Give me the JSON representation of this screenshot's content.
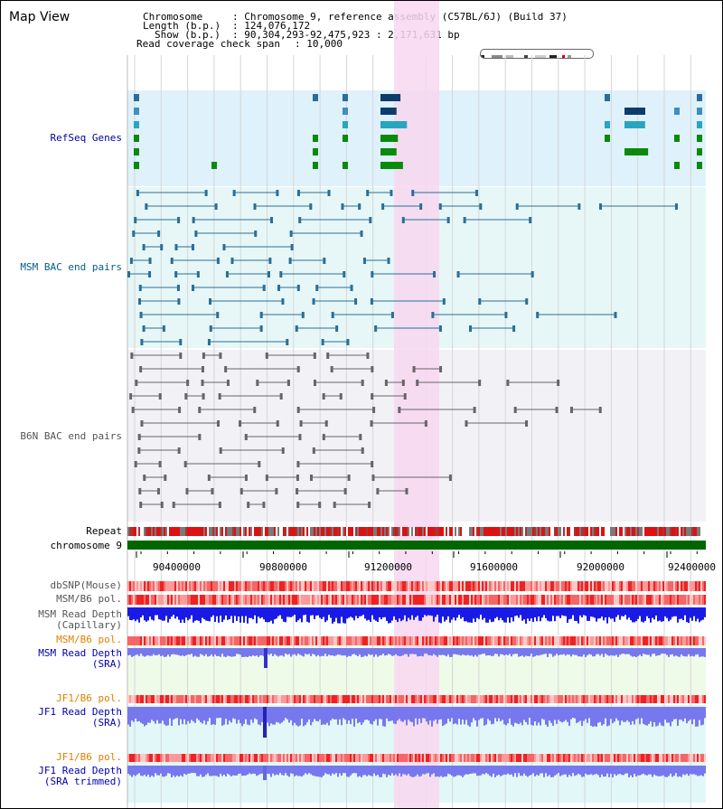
{
  "title": "Map View",
  "info": {
    "chromosome_key": "Chromosome",
    "chromosome_val": ": Chromosome 9, reference assembly (C57BL/6J) (Build 37)",
    "length_key": "Length (b.p.)",
    "length_val": ": 124,076,172",
    "show_key": "Show (b.p.)",
    "show_val": ": 90,304,293-92,475,923 : 2,171,631 bp",
    "coverage_key": "Read coverage check span",
    "coverage_val": ": 10,000"
  },
  "tracks": {
    "refseq": "RefSeq Genes",
    "msm_bac": "MSM BAC end pairs",
    "b6n_bac": "B6N BAC end pairs",
    "repeat": "Repeat",
    "chromosome": "chromosome 9",
    "dbsnp": "dbSNP(Mouse)",
    "msm_b6_pol_1": "MSM/B6 pol.",
    "msm_depth_cap_1": "MSM Read Depth",
    "msm_depth_cap_2": "(Capillary)",
    "msm_b6_pol_2": "MSM/B6 pol.",
    "msm_depth_sra_1": "MSM Read Depth",
    "msm_depth_sra_2": "(SRA)",
    "jf1_b6_pol_1": "JF1/B6 pol.",
    "jf1_depth_sra_1": "JF1 Read Depth",
    "jf1_depth_sra_2": "(SRA)",
    "jf1_b6_pol_2": "JF1/B6 pol.",
    "jf1_depth_trim_1": "JF1 Read Depth",
    "jf1_depth_trim_2": "(SRA trimmed)"
  },
  "axis": {
    "ticks": [
      "90400000",
      "90800000",
      "91200000",
      "91600000",
      "92000000",
      "92400000"
    ]
  },
  "colors": {
    "refseq_bg": "#dff1fa",
    "msm_bg": "#e7f7f7",
    "b6n_bg": "#f2f2f6",
    "highlight": "#f8d7f0",
    "chromosome_bar": "#006600",
    "depth_blue": "#1a1ae6",
    "depth_light": "#7777ee",
    "label_blue": "#0000aa",
    "label_teal": "#006080",
    "label_gray": "#555555",
    "label_orange": "#e08000"
  }
}
